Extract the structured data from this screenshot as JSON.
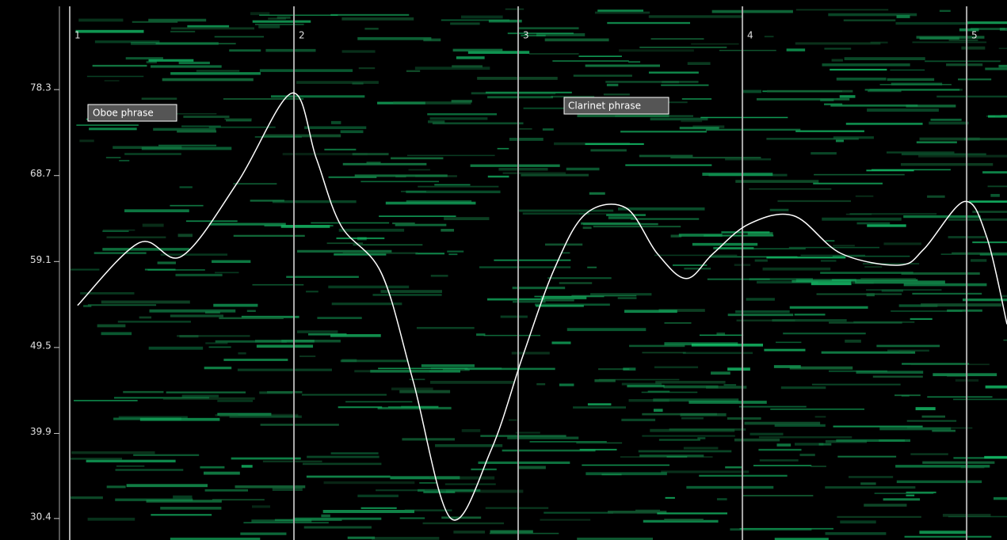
{
  "plot": {
    "type": "line",
    "annotations": [
      "Oboe phrase",
      "Clarinet phrase"
    ],
    "xlim": [
      1,
      5.18
    ],
    "xticks": [
      1,
      2,
      3,
      4,
      5
    ],
    "ylim": [
      28.0,
      87.6
    ],
    "yticks": [
      78.3,
      68.7,
      59.1,
      49.5,
      39.9,
      30.4
    ],
    "color": "#ffffff",
    "x": [
      1.035,
      1.31,
      1.5,
      1.75,
      1.99,
      2.1,
      2.21,
      2.39,
      2.53,
      2.7,
      2.88,
      3.02,
      3.16,
      3.3,
      3.48,
      3.62,
      3.75,
      3.87,
      4.03,
      4.23,
      4.44,
      4.7,
      4.81,
      4.99,
      5.09,
      5.18
    ],
    "values": [
      54.2,
      61.2,
      59.7,
      68.0,
      77.9,
      70.6,
      63.1,
      57.8,
      45.9,
      30.4,
      38.1,
      48.5,
      58.2,
      64.4,
      65.1,
      60.0,
      57.2,
      60.0,
      63.3,
      64.2,
      60.0,
      58.7,
      60.5,
      65.8,
      61.8,
      52.1
    ]
  }
}
